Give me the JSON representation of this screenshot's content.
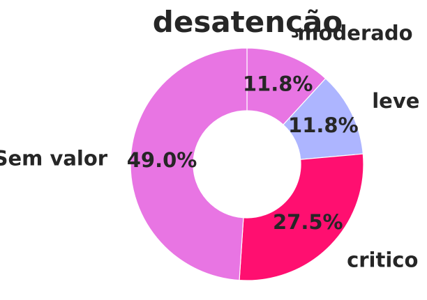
{
  "chart_data": {
    "type": "pie",
    "title": "desatenção",
    "donut": true,
    "slices": [
      {
        "label": "moderado",
        "value": 11.8,
        "pct_text": "11.8%",
        "color": "#e875e3"
      },
      {
        "label": "leve",
        "value": 11.8,
        "pct_text": "11.8%",
        "color": "#adb5ff"
      },
      {
        "label": "critico",
        "value": 27.5,
        "pct_text": "27.5%",
        "color": "#ff0f70"
      },
      {
        "label": "Sem valor",
        "value": 49.0,
        "pct_text": "49.0%",
        "color": "#e875e3"
      }
    ],
    "start_angle_deg": 90,
    "direction": "clockwise",
    "slice_border_color": "#ffffff"
  }
}
